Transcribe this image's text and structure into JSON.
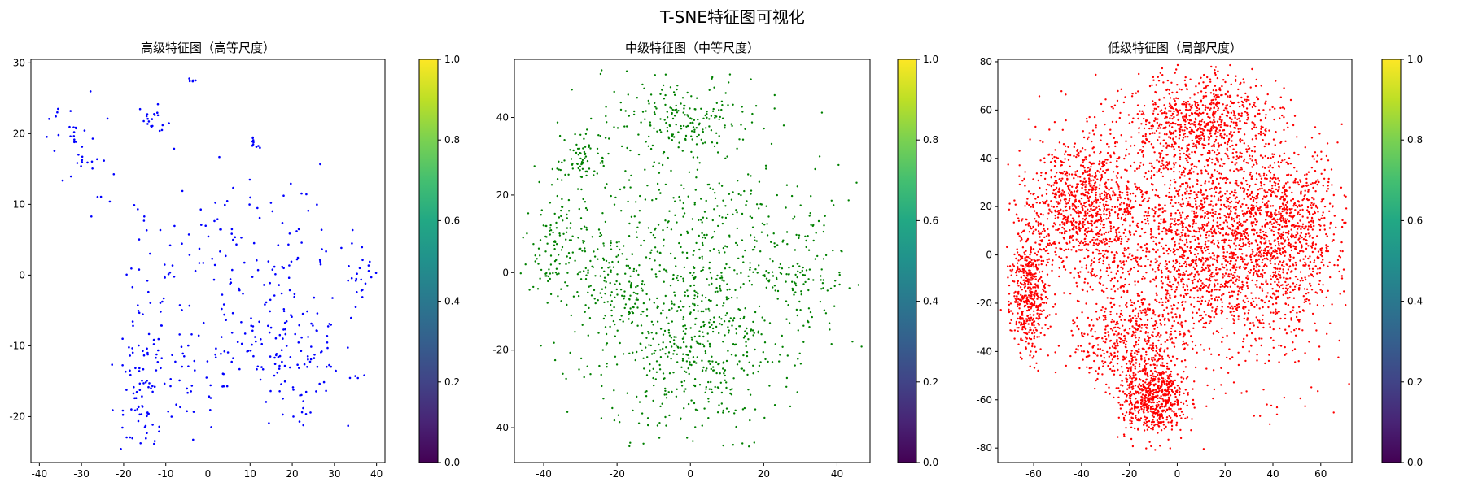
{
  "figure": {
    "title": "T-SNE特征图可视化"
  },
  "chart_data": [
    {
      "type": "scatter",
      "title": "高级特征图（高等尺度）",
      "color": "#0000ff",
      "xlim": [
        -42,
        42
      ],
      "ylim": [
        -26.5,
        30.5
      ],
      "xticks": [
        -40,
        -30,
        -20,
        -10,
        0,
        10,
        20,
        30,
        40
      ],
      "yticks": [
        -20,
        -10,
        0,
        10,
        20,
        30
      ],
      "points": 500,
      "colorbar": {
        "cmap": "viridis",
        "range": [
          0.0,
          1.0
        ],
        "ticks": [
          "0.0",
          "0.2",
          "0.4",
          "0.6",
          "0.8",
          "1.0"
        ]
      }
    },
    {
      "type": "scatter",
      "title": "中级特征图（中等尺度）",
      "color": "#008000",
      "xlim": [
        -48,
        49
      ],
      "ylim": [
        -49,
        55
      ],
      "xticks": [
        -40,
        -20,
        0,
        20,
        40
      ],
      "yticks": [
        -40,
        -20,
        0,
        20,
        40
      ],
      "points": 1500,
      "colorbar": {
        "cmap": "viridis",
        "range": [
          0.0,
          1.0
        ],
        "ticks": [
          "0.0",
          "0.2",
          "0.4",
          "0.6",
          "0.8",
          "1.0"
        ]
      }
    },
    {
      "type": "scatter",
      "title": "低级特征图（局部尺度）",
      "color": "#ff0000",
      "xlim": [
        -75,
        73
      ],
      "ylim": [
        -86,
        81
      ],
      "xticks": [
        -60,
        -40,
        -20,
        0,
        20,
        40,
        60
      ],
      "yticks": [
        -80,
        -60,
        -40,
        -20,
        0,
        20,
        40,
        60,
        80
      ],
      "points": 6000,
      "colorbar": {
        "cmap": "viridis",
        "range": [
          0.0,
          1.0
        ],
        "ticks": [
          "0.0",
          "0.2",
          "0.4",
          "0.6",
          "0.8",
          "1.0"
        ]
      }
    }
  ]
}
